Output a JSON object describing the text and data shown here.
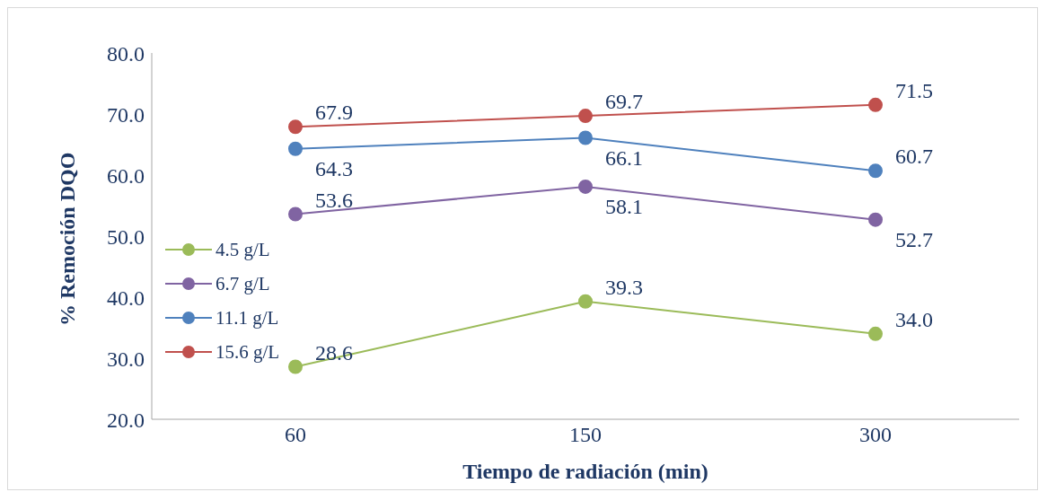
{
  "chart_data": {
    "type": "line",
    "xlabel": "Tiempo de radiación (min)",
    "ylabel": "% Remoción DQO",
    "categories": [
      "60",
      "150",
      "300"
    ],
    "series": [
      {
        "name": "4.5 g/L",
        "color": "#9bbb59",
        "values": [
          28.6,
          39.3,
          34.0
        ],
        "value_labels": [
          "28.6",
          "39.3",
          "34.0"
        ]
      },
      {
        "name": "6.7 g/L",
        "color": "#8064a2",
        "values": [
          53.6,
          58.1,
          52.7
        ],
        "value_labels": [
          "53.6",
          "58.1",
          "52.7"
        ]
      },
      {
        "name": "11.1 g/L",
        "color": "#4f81bd",
        "values": [
          64.3,
          66.1,
          60.7
        ],
        "value_labels": [
          "64.3",
          "66.1",
          "60.7"
        ]
      },
      {
        "name": "15.6 g/L",
        "color": "#c0504d",
        "values": [
          67.9,
          69.7,
          71.5
        ],
        "value_labels": [
          "67.9",
          "69.7",
          "71.5"
        ]
      }
    ],
    "ylim": [
      20,
      80
    ],
    "yticks": [
      {
        "value": 20,
        "label": "20.0"
      },
      {
        "value": 30,
        "label": "30.0"
      },
      {
        "value": 40,
        "label": "40.0"
      },
      {
        "value": 50,
        "label": "50.0"
      },
      {
        "value": 60,
        "label": "60.0"
      },
      {
        "value": 70,
        "label": "70.0"
      },
      {
        "value": 80,
        "label": "80.0"
      }
    ],
    "grid": false,
    "legend": "left",
    "marker": "circle",
    "line_style": "solid"
  }
}
